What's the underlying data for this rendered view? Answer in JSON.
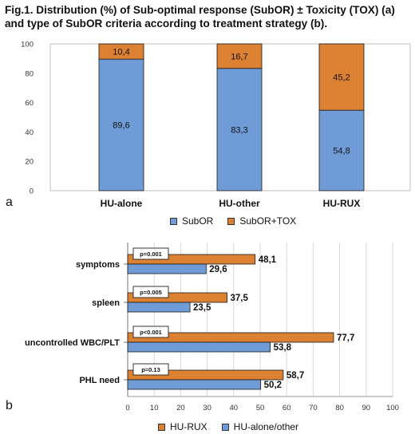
{
  "title": "Fig.1. Distribution (%) of Sub-optimal response (SubOR) ± Toxicity (TOX) (a) and type of SubOR criteria according to treatment strategy (b).",
  "colors": {
    "blue": "#6f9bd6",
    "orange": "#dc8032",
    "axis": "#555555",
    "grid": "#d9d9d9"
  },
  "chart_data": [
    {
      "type": "bar",
      "stacked": true,
      "panel_label": "a",
      "categories": [
        "HU-alone",
        "HU-other",
        "HU-RUX"
      ],
      "series": [
        {
          "name": "SubOR",
          "values": [
            89.6,
            83.3,
            54.8
          ],
          "labels": [
            "89,6",
            "83,3",
            "54,8"
          ],
          "color": "#6f9bd6"
        },
        {
          "name": "SubOR+TOX",
          "values": [
            10.4,
            16.7,
            45.2
          ],
          "labels": [
            "10,4",
            "16,7",
            "45,2"
          ],
          "color": "#dc8032"
        }
      ],
      "ylim": [
        0,
        100
      ],
      "yticks": [
        "0",
        "20",
        "40",
        "60",
        "80",
        "100"
      ],
      "grid": false,
      "legend": "bottom"
    },
    {
      "type": "bar",
      "orientation": "horizontal",
      "panel_label": "b",
      "categories": [
        "symptoms",
        "spleen",
        "uncontrolled WBC/PLT",
        "PHL need"
      ],
      "series": [
        {
          "name": "HU-RUX",
          "values": [
            48.1,
            37.5,
            77.7,
            58.7
          ],
          "labels": [
            "48,1",
            "37,5",
            "77,7",
            "58,7"
          ],
          "color": "#dc8032"
        },
        {
          "name": "HU-alone/other",
          "values": [
            29.6,
            23.5,
            53.8,
            50.2
          ],
          "labels": [
            "29,6",
            "23,5",
            "53,8",
            "50,2"
          ],
          "color": "#6f9bd6"
        }
      ],
      "annotations": [
        "p=0.001",
        "p=0.005",
        "p<0.001",
        "p=0.13"
      ],
      "xlim": [
        0,
        100
      ],
      "xticks": [
        "0",
        "10",
        "20",
        "30",
        "40",
        "50",
        "60",
        "70",
        "80",
        "90",
        "100"
      ],
      "grid": true,
      "legend": "bottom"
    }
  ]
}
